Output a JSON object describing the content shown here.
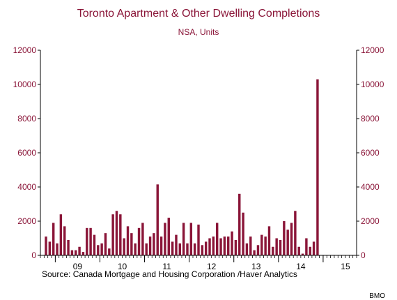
{
  "colors": {
    "bar": "#8a1538",
    "text_accent": "#8a1538",
    "axis": "#000000"
  },
  "chart_data": {
    "type": "bar",
    "title": "Toronto Apartment & Other Dwelling Completions",
    "subtitle": "NSA, Units",
    "source": "Source:  Canada Mortgage and Housing Corporation /Haver Analytics",
    "credit": "BMO",
    "ylim": [
      0,
      12000
    ],
    "y_ticks": [
      "0",
      "2000",
      "4000",
      "6000",
      "8000",
      "10000",
      "12000"
    ],
    "x_ticks": [
      "09",
      "10",
      "11",
      "12",
      "13",
      "14",
      "15"
    ],
    "x_range_months": [
      "2008-09",
      "2015-09"
    ],
    "grid": false,
    "legend": "none",
    "series": [
      {
        "start": "2008-10",
        "values": [
          1100,
          800,
          1900,
          700,
          2400,
          1700,
          900,
          300,
          300,
          500,
          200,
          1600,
          1600,
          1200,
          600,
          700,
          1300,
          400,
          2400,
          2600,
          2400,
          1000,
          1700,
          1300,
          700,
          1600,
          1900,
          700,
          1100,
          1300,
          4150,
          1100,
          1900,
          2200,
          800,
          1200,
          700,
          1900,
          700,
          1900,
          700,
          1800,
          600,
          800,
          1000,
          1100,
          1900,
          1000,
          1100,
          1100,
          1400,
          900,
          3600,
          2500,
          700,
          1100,
          300,
          600,
          1200,
          1100,
          1700,
          500,
          1000,
          900,
          2000,
          1500,
          1900,
          2600,
          500,
          100,
          1000,
          500,
          800,
          10300
        ]
      }
    ]
  }
}
